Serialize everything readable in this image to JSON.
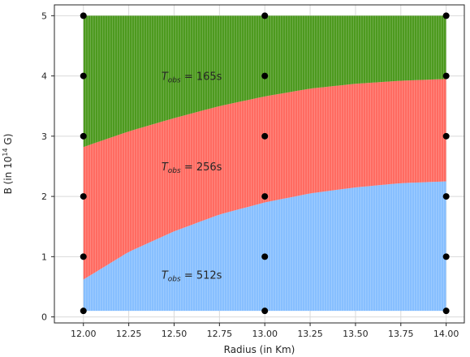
{
  "chart_data": {
    "type": "area",
    "xlabel": "Radius (in Km)",
    "ylabel_parts": {
      "prefix": "B (in 10",
      "exp": "14",
      "suffix": " G)"
    },
    "xlim": [
      11.84,
      14.1
    ],
    "ylim": [
      -0.1,
      5.18
    ],
    "xticks": [
      12.0,
      12.25,
      12.5,
      12.75,
      13.0,
      13.25,
      13.5,
      13.75,
      14.0
    ],
    "xtick_labels": [
      "12.00",
      "12.25",
      "12.50",
      "12.75",
      "13.00",
      "13.25",
      "13.50",
      "13.75",
      "14.00"
    ],
    "yticks": [
      0,
      1,
      2,
      3,
      4,
      5
    ],
    "ytick_labels": [
      "0",
      "1",
      "2",
      "3",
      "4",
      "5"
    ],
    "grid": true,
    "region_x_range": [
      12.0,
      14.0
    ],
    "region_y_range": [
      0.1,
      5.0
    ],
    "regions": [
      {
        "label": "512s",
        "color": "#87BFFF",
        "upper_boundary": {
          "x": [
            12.0,
            12.25,
            12.5,
            12.75,
            13.0,
            13.25,
            13.5,
            13.75,
            14.0
          ],
          "y": [
            0.62,
            1.08,
            1.42,
            1.7,
            1.9,
            2.05,
            2.15,
            2.22,
            2.25
          ]
        }
      },
      {
        "label": "256s",
        "color": "#FF6B61",
        "upper_boundary": {
          "x": [
            12.0,
            12.25,
            12.5,
            12.75,
            13.0,
            13.25,
            13.5,
            13.75,
            14.0
          ],
          "y": [
            2.82,
            3.08,
            3.3,
            3.5,
            3.66,
            3.79,
            3.87,
            3.92,
            3.95
          ]
        }
      },
      {
        "label": "165s",
        "color": "#4D9A1F",
        "upper_boundary": {
          "x": [
            12.0,
            14.0
          ],
          "y": [
            5.0,
            5.0
          ]
        }
      }
    ],
    "annotations": [
      {
        "text_prefix": "T",
        "subscript": "obs",
        "value": "= 165s",
        "x": 12.43,
        "y": 4.0
      },
      {
        "text_prefix": "T",
        "subscript": "obs",
        "value": "= 256s",
        "x": 12.43,
        "y": 2.5
      },
      {
        "text_prefix": "T",
        "subscript": "obs",
        "value": "= 512s",
        "x": 12.43,
        "y": 0.7
      }
    ],
    "points": {
      "color": "#000000",
      "x": [
        12,
        12,
        12,
        12,
        12,
        12,
        13,
        13,
        13,
        13,
        13,
        13,
        14,
        14,
        14,
        14,
        14,
        14
      ],
      "y": [
        0.1,
        1,
        2,
        3,
        4,
        5,
        0.1,
        1,
        2,
        3,
        4,
        5,
        0.1,
        1,
        2,
        3,
        4,
        5
      ]
    }
  }
}
